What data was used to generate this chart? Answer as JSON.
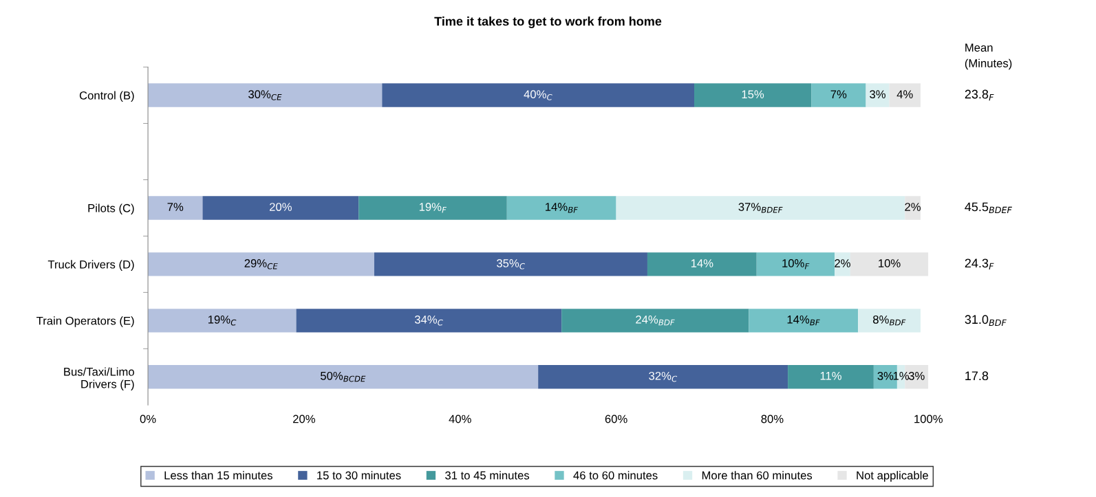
{
  "chart_data": {
    "type": "bar",
    "orientation": "horizontal",
    "stacked": true,
    "title": "Time it takes to get to work from home",
    "categories": [
      "Control (B)",
      null,
      "Pilots (C)",
      "Truck Drivers (D)",
      "Train Operators (E)",
      "Bus/Taxi/Limo\nDrivers (F)"
    ],
    "series": [
      {
        "name": "Less than 15 minutes",
        "color": "#b4c1de",
        "values": [
          30,
          null,
          7,
          29,
          19,
          50
        ],
        "value_labels": [
          "30%$_{CE}$",
          null,
          "7%",
          "29%$_{CE}$",
          "19%$_{C}$",
          "50%$_{BCDE}$"
        ]
      },
      {
        "name": "15 to 30 minutes",
        "color": "#44629a",
        "values": [
          40,
          null,
          20,
          35,
          34,
          32
        ],
        "value_labels": [
          "40%$_{C}$",
          null,
          "20%",
          "35%$_{C}$",
          "34%$_{C}$",
          "32%$_{C}$"
        ]
      },
      {
        "name": "31 to 45 minutes",
        "color": "#44999c",
        "values": [
          15,
          null,
          19,
          14,
          24,
          11
        ],
        "value_labels": [
          "15%",
          null,
          "19%$_{F}$",
          "14%",
          "24%$_{BDF}$",
          "11%"
        ]
      },
      {
        "name": "46 to 60 minutes",
        "color": "#74c2c6",
        "values": [
          7,
          null,
          14,
          10,
          14,
          3
        ],
        "value_labels": [
          "7%",
          null,
          "14%$_{BF}$",
          "10%$_{F}$",
          "14%$_{BF}$",
          "3%"
        ]
      },
      {
        "name": "More than 60 minutes",
        "color": "#daeff0",
        "values": [
          3,
          null,
          37,
          2,
          8,
          1
        ],
        "value_labels": [
          "3%",
          null,
          "37%$_{BDEF}$",
          "2%",
          "8%$_{BDF}$",
          "1%"
        ]
      },
      {
        "name": "Not applicable",
        "color": "#e6e6e6",
        "values": [
          4,
          null,
          2,
          10,
          null,
          3
        ],
        "value_labels": [
          "4%",
          null,
          "2%",
          "10%",
          null,
          "3%"
        ]
      }
    ],
    "xlim": [
      0,
      100
    ],
    "xticks": [
      {
        "value": 0,
        "label": "0%"
      },
      {
        "value": 20,
        "label": "20%"
      },
      {
        "value": 40,
        "label": "40%"
      },
      {
        "value": 60,
        "label": "60%"
      },
      {
        "value": 80,
        "label": "80%"
      },
      {
        "value": 100,
        "label": "100%"
      }
    ],
    "legend": "bottom",
    "grid": false,
    "annotations": [
      "Mean\n(Minutes)",
      "23.8$_{F}$",
      "45.5$_{BDEF}$",
      "24.3$_{F}$",
      "31.0$_{BDF}$",
      "17.8"
    ]
  }
}
